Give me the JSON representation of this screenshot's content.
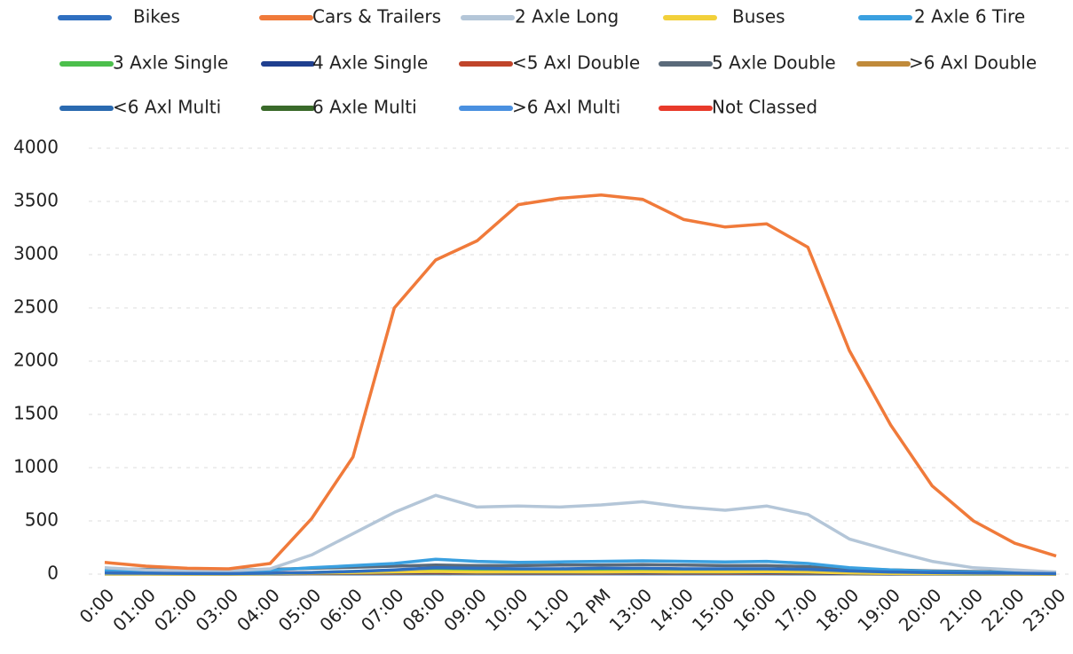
{
  "chart_data": {
    "type": "line",
    "categories": [
      "0:00",
      "01:00",
      "02:00",
      "03:00",
      "04:00",
      "05:00",
      "06:00",
      "07:00",
      "08:00",
      "09:00",
      "10:00",
      "11:00",
      "12 PM",
      "13:00",
      "14:00",
      "15:00",
      "16:00",
      "17:00",
      "18:00",
      "19:00",
      "20:00",
      "21:00",
      "22:00",
      "23:00"
    ],
    "ylim": [
      0,
      4000
    ],
    "yticks": [
      0,
      500,
      1000,
      1500,
      2000,
      2500,
      3000,
      3500,
      4000
    ],
    "grid": true,
    "legend": "top",
    "series": [
      {
        "name": "Bikes",
        "color": "#2f6fc0",
        "values": [
          10,
          8,
          6,
          5,
          8,
          15,
          25,
          40,
          60,
          55,
          50,
          50,
          55,
          55,
          50,
          50,
          50,
          45,
          30,
          20,
          15,
          10,
          8,
          5
        ]
      },
      {
        "name": "Cars & Trailers",
        "color": "#f07a3a",
        "values": [
          110,
          75,
          55,
          50,
          100,
          520,
          1100,
          2500,
          2950,
          3130,
          3470,
          3530,
          3560,
          3520,
          3330,
          3260,
          3290,
          3070,
          2100,
          1400,
          830,
          500,
          290,
          170
        ]
      },
      {
        "name": "2 Axle Long",
        "color": "#b4c6d8",
        "values": [
          60,
          40,
          30,
          30,
          50,
          180,
          380,
          580,
          740,
          630,
          640,
          630,
          650,
          680,
          630,
          600,
          640,
          560,
          330,
          220,
          120,
          60,
          40,
          20
        ]
      },
      {
        "name": "Buses",
        "color": "#f2d03a",
        "values": [
          2,
          1,
          1,
          1,
          3,
          10,
          15,
          20,
          25,
          20,
          20,
          20,
          20,
          22,
          20,
          20,
          22,
          20,
          10,
          6,
          4,
          3,
          2,
          1
        ]
      },
      {
        "name": "2 Axle 6 Tire",
        "color": "#3aa0e0",
        "values": [
          40,
          30,
          25,
          25,
          35,
          60,
          80,
          100,
          140,
          120,
          110,
          115,
          120,
          125,
          120,
          115,
          120,
          100,
          60,
          40,
          25,
          20,
          15,
          10
        ]
      },
      {
        "name": "3 Axle Single",
        "color": "#4cbf4c",
        "values": [
          5,
          4,
          3,
          3,
          5,
          15,
          25,
          35,
          45,
          40,
          40,
          40,
          42,
          42,
          40,
          38,
          38,
          30,
          15,
          10,
          6,
          4,
          3,
          2
        ]
      },
      {
        "name": "4 Axle Single",
        "color": "#1f3f8f",
        "values": [
          3,
          2,
          2,
          2,
          3,
          8,
          12,
          15,
          18,
          16,
          15,
          15,
          16,
          16,
          15,
          14,
          14,
          12,
          6,
          4,
          3,
          2,
          2,
          1
        ]
      },
      {
        "name": "<5 Axl Double",
        "color": "#c0442a",
        "values": [
          5,
          4,
          3,
          3,
          4,
          8,
          10,
          12,
          14,
          13,
          12,
          12,
          12,
          12,
          12,
          11,
          11,
          10,
          6,
          5,
          4,
          3,
          3,
          2
        ]
      },
      {
        "name": "5 Axle Double",
        "color": "#5a6a7a",
        "values": [
          50,
          45,
          40,
          40,
          45,
          55,
          65,
          75,
          85,
          80,
          80,
          85,
          85,
          90,
          85,
          80,
          80,
          70,
          50,
          40,
          30,
          25,
          20,
          15
        ]
      },
      {
        "name": ">6 Axl Double",
        "color": "#c08a3a",
        "values": [
          2,
          2,
          1,
          1,
          2,
          4,
          6,
          8,
          10,
          9,
          9,
          9,
          9,
          9,
          9,
          8,
          8,
          7,
          4,
          3,
          2,
          2,
          1,
          1
        ]
      },
      {
        "name": "<6 Axl Multi",
        "color": "#2a6ab0",
        "values": [
          1,
          1,
          1,
          1,
          1,
          2,
          3,
          4,
          5,
          4,
          4,
          4,
          4,
          4,
          4,
          4,
          4,
          3,
          2,
          1,
          1,
          1,
          1,
          1
        ]
      },
      {
        "name": "6 Axle Multi",
        "color": "#3a6a2a",
        "values": [
          2,
          2,
          1,
          1,
          2,
          3,
          5,
          6,
          8,
          7,
          7,
          7,
          7,
          7,
          7,
          6,
          6,
          5,
          3,
          2,
          2,
          1,
          1,
          1
        ]
      },
      {
        "name": ">6 Axl Multi",
        "color": "#4a90e0",
        "values": [
          1,
          1,
          1,
          1,
          1,
          2,
          2,
          3,
          3,
          3,
          3,
          3,
          3,
          3,
          3,
          3,
          3,
          2,
          2,
          1,
          1,
          1,
          1,
          1
        ]
      },
      {
        "name": "Not Classed",
        "color": "#e83a2a",
        "values": [
          15,
          12,
          10,
          10,
          12,
          15,
          18,
          20,
          22,
          20,
          20,
          20,
          20,
          20,
          20,
          20,
          20,
          18,
          15,
          12,
          10,
          8,
          8,
          6
        ]
      }
    ]
  }
}
